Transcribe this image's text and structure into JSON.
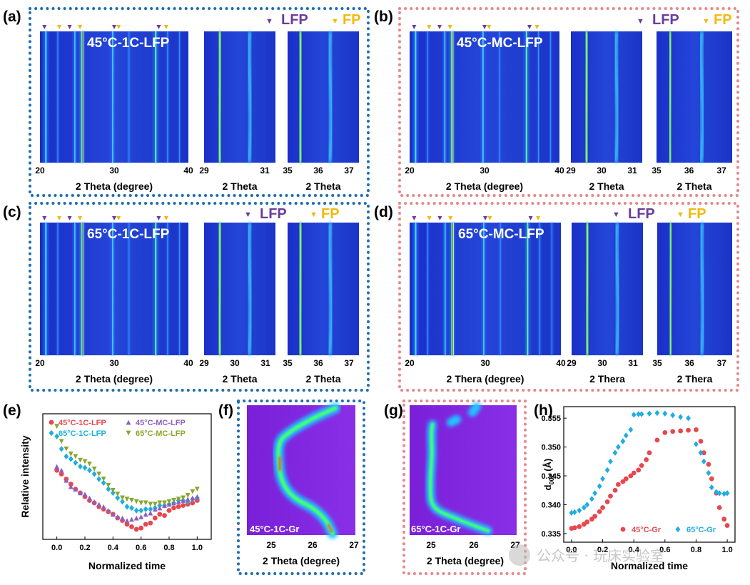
{
  "panels": {
    "a": {
      "label": "(a)",
      "title": "45°C-1C-LFP",
      "xlabel_main": "2 Theta (degree)",
      "xlabel_z1": "2 Theta",
      "xlabel_z2": "2 Theta",
      "ticks_main": [
        "20",
        "30",
        "40"
      ],
      "ticks_z1": [
        "29",
        "31"
      ],
      "ticks_z2": [
        "35",
        "36",
        "37"
      ]
    },
    "b": {
      "label": "(b)",
      "title": "45°C-MC-LFP",
      "xlabel_main": "2 Theta (degree)",
      "xlabel_z1": "2 Theta",
      "xlabel_z2": "2 Theta",
      "ticks_main": [
        "20",
        "30",
        "40"
      ],
      "ticks_z1": [
        "29",
        "30",
        "31"
      ],
      "ticks_z2": [
        "35",
        "36",
        "37"
      ]
    },
    "c": {
      "label": "(c)",
      "title": "65°C-1C-LFP",
      "xlabel_main": "2 Theta (degree)",
      "xlabel_z1": "2 Theta",
      "xlabel_z2": "2 Theta",
      "ticks_main": [
        "20",
        "30",
        "40"
      ],
      "ticks_z1": [
        "29",
        "30",
        "31"
      ],
      "ticks_z2": [
        "35",
        "36",
        "37"
      ]
    },
    "d": {
      "label": "(d)",
      "title": "65°C-MC-LFP",
      "xlabel_main": "2 Thera (degree)",
      "xlabel_z1": "2 Thera",
      "xlabel_z2": "2 Thera",
      "ticks_main": [
        "20",
        "30",
        "40"
      ],
      "ticks_z1": [
        "29",
        "30",
        "31"
      ],
      "ticks_z2": [
        "35",
        "36",
        "37"
      ]
    },
    "e": {
      "label": "(e)"
    },
    "f": {
      "label": "(f)",
      "title": "45°C-1C-Gr",
      "xlabel": "2 Theta (degree)",
      "ticks": [
        "25",
        "26",
        "27"
      ]
    },
    "g": {
      "label": "(g)",
      "title": "65°C-1C-Gr",
      "xlabel": "2 Theta (degree)",
      "ticks": [
        "25",
        "26",
        "27"
      ]
    },
    "h": {
      "label": "(h)"
    }
  },
  "legend": {
    "lfp": "LFP",
    "fp": "FP",
    "lfp_marker": "▼",
    "fp_marker": "▼"
  },
  "colors": {
    "lfp": "#6a3d9a",
    "fp": "#f2b90f",
    "box_blue": "#1f6fb2",
    "box_red": "#e8888c"
  },
  "watermark": {
    "text": "公众号 · 玩床实验室"
  },
  "chart_data": [
    {
      "panel": "e",
      "type": "scatter",
      "xlabel": "Normalized time",
      "ylabel": "Relative intensity",
      "xlim": [
        -0.1,
        1.1
      ],
      "xticks": [
        "0.0",
        "0.2",
        "0.4",
        "0.6",
        "0.8",
        "1.0"
      ],
      "ylim": [
        0,
        1
      ],
      "series": [
        {
          "name": "45°C-1C-LFP",
          "marker": "circle",
          "color": "#e8474f",
          "x": [
            0.0,
            0.033,
            0.067,
            0.1,
            0.133,
            0.167,
            0.2,
            0.233,
            0.267,
            0.3,
            0.333,
            0.367,
            0.4,
            0.433,
            0.467,
            0.5,
            0.533,
            0.567,
            0.6,
            0.633,
            0.667,
            0.7,
            0.733,
            0.767,
            0.8,
            0.833,
            0.867,
            0.9,
            0.933,
            0.967,
            1.0
          ],
          "y": [
            0.55,
            0.52,
            0.48,
            0.44,
            0.4,
            0.37,
            0.34,
            0.31,
            0.29,
            0.26,
            0.24,
            0.22,
            0.2,
            0.17,
            0.15,
            0.12,
            0.1,
            0.08,
            0.09,
            0.12,
            0.13,
            0.17,
            0.2,
            0.19,
            0.23,
            0.25,
            0.26,
            0.27,
            0.28,
            0.29,
            0.31
          ]
        },
        {
          "name": "65°C-1C-LFP",
          "marker": "diamond",
          "color": "#1eaee0",
          "x": [
            0.0,
            0.033,
            0.067,
            0.1,
            0.133,
            0.167,
            0.2,
            0.233,
            0.267,
            0.3,
            0.333,
            0.367,
            0.4,
            0.433,
            0.467,
            0.5,
            0.533,
            0.567,
            0.6,
            0.633,
            0.667,
            0.7,
            0.733,
            0.767,
            0.8,
            0.833,
            0.867,
            0.9,
            0.933,
            0.967,
            1.0
          ],
          "y": [
            0.82,
            0.72,
            0.66,
            0.64,
            0.61,
            0.58,
            0.57,
            0.55,
            0.52,
            0.48,
            0.45,
            0.4,
            0.37,
            0.33,
            0.3,
            0.26,
            0.25,
            0.23,
            0.23,
            0.24,
            0.24,
            0.25,
            0.27,
            0.27,
            0.28,
            0.29,
            0.31,
            0.31,
            0.3,
            0.32,
            0.33
          ]
        },
        {
          "name": "45°C-MC-LFP",
          "marker": "triangle-up",
          "color": "#8b5fbf",
          "x": [
            0.0,
            0.033,
            0.067,
            0.1,
            0.133,
            0.167,
            0.2,
            0.233,
            0.267,
            0.3,
            0.333,
            0.367,
            0.4,
            0.433,
            0.467,
            0.5,
            0.533,
            0.567,
            0.6,
            0.633,
            0.667,
            0.7,
            0.733,
            0.767,
            0.8,
            0.833,
            0.867,
            0.9,
            0.933,
            0.967,
            1.0
          ],
          "y": [
            0.58,
            0.55,
            0.47,
            0.42,
            0.4,
            0.37,
            0.36,
            0.33,
            0.3,
            0.28,
            0.26,
            0.23,
            0.2,
            0.18,
            0.17,
            0.15,
            0.16,
            0.17,
            0.18,
            0.2,
            0.21,
            0.24,
            0.25,
            0.27,
            0.28,
            0.29,
            0.3,
            0.31,
            0.32,
            0.33,
            0.34
          ]
        },
        {
          "name": "65°C-MC-LFP",
          "marker": "triangle-down",
          "color": "#8aa62c",
          "x": [
            0.0,
            0.033,
            0.067,
            0.1,
            0.133,
            0.167,
            0.2,
            0.233,
            0.267,
            0.3,
            0.333,
            0.367,
            0.4,
            0.433,
            0.467,
            0.5,
            0.533,
            0.567,
            0.6,
            0.633,
            0.667,
            0.7,
            0.733,
            0.767,
            0.8,
            0.833,
            0.867,
            0.9,
            0.933,
            0.967,
            1.0
          ],
          "y": [
            0.9,
            0.78,
            0.72,
            0.68,
            0.66,
            0.63,
            0.62,
            0.6,
            0.56,
            0.52,
            0.48,
            0.43,
            0.39,
            0.36,
            0.33,
            0.32,
            0.31,
            0.3,
            0.29,
            0.29,
            0.28,
            0.28,
            0.29,
            0.29,
            0.3,
            0.31,
            0.32,
            0.33,
            0.35,
            0.38,
            0.4
          ]
        }
      ]
    },
    {
      "panel": "h",
      "type": "scatter",
      "xlabel": "Normalized time",
      "ylabel": "d002 (Å)",
      "ylabel_main": "d",
      "ylabel_sub": "002",
      "ylabel_unit": " (Å)",
      "xlim": [
        -0.05,
        1.05
      ],
      "ylim": [
        0.3335,
        0.357
      ],
      "xticks": [
        "0.0",
        "0.2",
        "0.4",
        "0.6",
        "0.8",
        "1.0"
      ],
      "yticks": [
        "0.335",
        "0.340",
        "0.345",
        "0.350",
        "0.355"
      ],
      "series": [
        {
          "name": "45°C-Gr",
          "marker": "circle",
          "color": "#e8474f",
          "x": [
            0.0,
            0.02,
            0.05,
            0.08,
            0.1,
            0.13,
            0.15,
            0.18,
            0.2,
            0.23,
            0.25,
            0.28,
            0.3,
            0.33,
            0.35,
            0.38,
            0.4,
            0.43,
            0.45,
            0.48,
            0.5,
            0.55,
            0.6,
            0.65,
            0.7,
            0.75,
            0.8,
            0.83,
            0.85,
            0.88,
            0.9,
            0.93,
            0.95,
            0.98,
            1.0
          ],
          "y": [
            0.3359,
            0.336,
            0.3362,
            0.3366,
            0.337,
            0.3375,
            0.338,
            0.3388,
            0.3395,
            0.3405,
            0.3415,
            0.3425,
            0.3435,
            0.344,
            0.3445,
            0.345,
            0.3455,
            0.346,
            0.3468,
            0.3478,
            0.349,
            0.3512,
            0.3525,
            0.3527,
            0.3528,
            0.3529,
            0.353,
            0.351,
            0.349,
            0.347,
            0.3445,
            0.342,
            0.3395,
            0.3375,
            0.3364
          ]
        },
        {
          "name": "65°C-Gr",
          "marker": "diamond",
          "color": "#1eaee0",
          "x": [
            0.0,
            0.02,
            0.05,
            0.08,
            0.1,
            0.13,
            0.15,
            0.18,
            0.2,
            0.23,
            0.25,
            0.28,
            0.3,
            0.33,
            0.35,
            0.38,
            0.4,
            0.43,
            0.45,
            0.5,
            0.55,
            0.6,
            0.65,
            0.7,
            0.75,
            0.8,
            0.83,
            0.85,
            0.88,
            0.9,
            0.93,
            0.95,
            0.98,
            1.0
          ],
          "y": [
            0.3386,
            0.3387,
            0.339,
            0.3395,
            0.34,
            0.341,
            0.342,
            0.3432,
            0.3445,
            0.346,
            0.3475,
            0.349,
            0.35,
            0.351,
            0.352,
            0.353,
            0.3556,
            0.3557,
            0.3557,
            0.3558,
            0.3559,
            0.3558,
            0.3555,
            0.3552,
            0.355,
            0.3505,
            0.349,
            0.3475,
            0.3455,
            0.343,
            0.3422,
            0.342,
            0.3419,
            0.342
          ]
        }
      ]
    }
  ]
}
